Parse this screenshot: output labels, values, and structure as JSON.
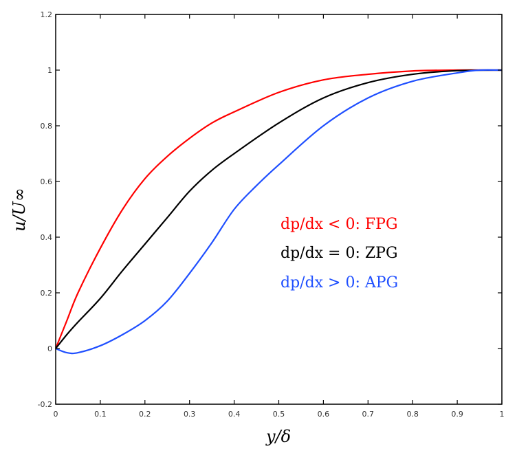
{
  "chart_data": {
    "type": "line",
    "xlabel": "y/δ",
    "ylabel": "u/U∞",
    "xlim": [
      0,
      1
    ],
    "ylim": [
      -0.2,
      1.2
    ],
    "xticks": [
      "0",
      "0.1",
      "0.2",
      "0.3",
      "0.4",
      "0.5",
      "0.6",
      "0.7",
      "0.8",
      "0.9",
      "1"
    ],
    "yticks": [
      "-0.2",
      "0",
      "0.2",
      "0.4",
      "0.6",
      "0.8",
      "1",
      "1.2"
    ],
    "grid": false,
    "legend_placement": "center-right",
    "series": [
      {
        "name": "dp/dx < 0:  FPG",
        "color": "#ff0000",
        "x": [
          0,
          0.025,
          0.05,
          0.1,
          0.15,
          0.2,
          0.25,
          0.3,
          0.35,
          0.4,
          0.5,
          0.6,
          0.7,
          0.8,
          0.9,
          1
        ],
        "y": [
          0,
          0.1,
          0.2,
          0.36,
          0.5,
          0.61,
          0.69,
          0.755,
          0.81,
          0.85,
          0.92,
          0.965,
          0.985,
          0.997,
          1,
          1
        ]
      },
      {
        "name": "dp/dx = 0:  ZPG",
        "color": "#000000",
        "x": [
          0,
          0.025,
          0.05,
          0.1,
          0.15,
          0.2,
          0.25,
          0.3,
          0.35,
          0.4,
          0.5,
          0.6,
          0.7,
          0.8,
          0.9,
          1
        ],
        "y": [
          0,
          0.05,
          0.095,
          0.18,
          0.28,
          0.375,
          0.47,
          0.565,
          0.64,
          0.7,
          0.81,
          0.9,
          0.955,
          0.985,
          0.998,
          1
        ]
      },
      {
        "name": "dp/dx > 0:  APG",
        "color": "#1f4fff",
        "x": [
          0,
          0.025,
          0.05,
          0.1,
          0.15,
          0.2,
          0.25,
          0.3,
          0.35,
          0.4,
          0.45,
          0.5,
          0.6,
          0.7,
          0.8,
          0.9,
          0.95,
          1
        ],
        "y": [
          0,
          -0.015,
          -0.015,
          0.01,
          0.05,
          0.1,
          0.17,
          0.27,
          0.38,
          0.5,
          0.585,
          0.66,
          0.8,
          0.9,
          0.96,
          0.99,
          1,
          1
        ]
      }
    ]
  }
}
